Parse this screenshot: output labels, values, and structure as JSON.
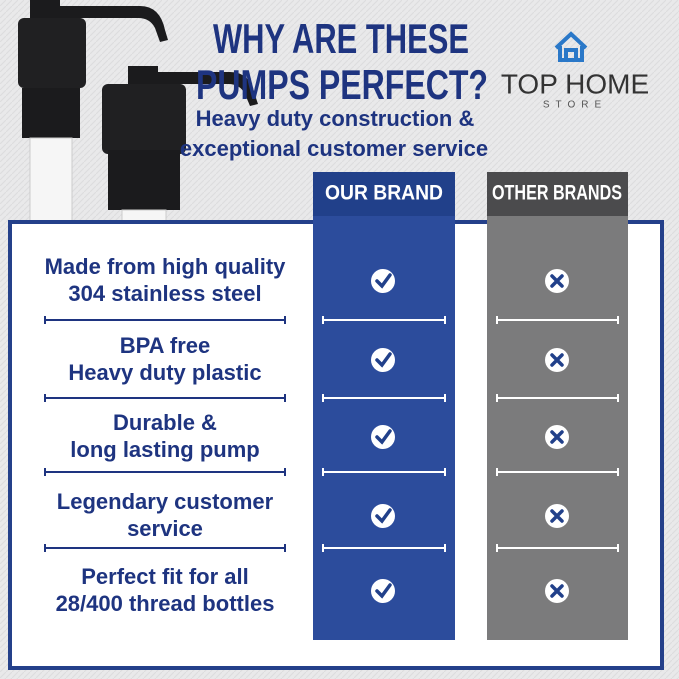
{
  "header": {
    "title": [
      "WHY ARE THESE",
      "PUMPS PERFECT?"
    ],
    "subtitle": [
      "Heavy duty construction &",
      "exceptional customer service"
    ],
    "logo": {
      "name": "TOP HOME",
      "tagline": "STORE"
    }
  },
  "table": {
    "columns": [
      "OUR BRAND",
      "OTHER BRANDS"
    ],
    "rows": [
      [
        "Made from high quality",
        "304 stainless steel"
      ],
      [
        "BPA free",
        "Heavy duty plastic"
      ],
      [
        "Durable &",
        "long lasting pump"
      ],
      [
        "Legendary customer",
        "service"
      ],
      [
        "Perfect fit for all",
        "28/400 thread bottles"
      ]
    ]
  }
}
